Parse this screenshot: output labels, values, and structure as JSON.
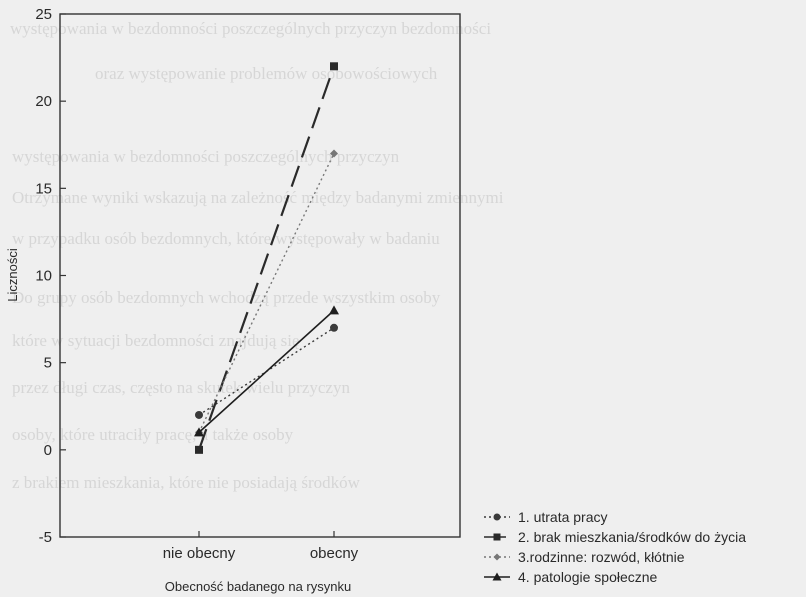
{
  "chart_data": {
    "type": "line",
    "title": "",
    "xlabel": "Obecność badanego na rysynku",
    "ylabel": "Liczności",
    "categories": [
      "nie obecny",
      "obecny"
    ],
    "ylim": [
      -5,
      25
    ],
    "yticks": [
      -5,
      0,
      5,
      10,
      15,
      20,
      25
    ],
    "grid": false,
    "legend_position": "bottom-right",
    "series": [
      {
        "name": "1.  utrata pracy",
        "values": [
          2,
          7
        ],
        "color": "#3a3a3a",
        "line_style": "dotted",
        "marker": "circle"
      },
      {
        "name": "2. brak mieszkania/środków do życia",
        "values": [
          0,
          22
        ],
        "color": "#2a2a2a",
        "line_style": "dashed",
        "marker": "square"
      },
      {
        "name": "3.rodzinne: rozwód, kłótnie",
        "values": [
          1,
          17
        ],
        "color": "#777777",
        "line_style": "dotted",
        "marker": "diamond"
      },
      {
        "name": "4. patologie społeczne",
        "values": [
          1,
          8
        ],
        "color": "#1e1e1e",
        "line_style": "solid",
        "marker": "triangle"
      }
    ]
  },
  "background_text": [
    "występowania w bezdomności poszczególnych przyczyn bezdomności",
    "oraz występowanie problemów osobowościowych",
    "występowania w bezdomności poszczególnych przyczyn",
    "Otrzymane wyniki wskazują na zależność między badanymi zmiennymi",
    "w przypadku osób bezdomnych, które występowały w badaniu",
    "Do grupy osób bezdomnych wchodzą przede wszystkim osoby",
    "które w sytuacji bezdomności znajdują się",
    "przez długi czas, często na skutek wielu przyczyn",
    "osoby, które utraciły pracę, a także osoby",
    "z brakiem mieszkania, które nie posiadają środków"
  ]
}
